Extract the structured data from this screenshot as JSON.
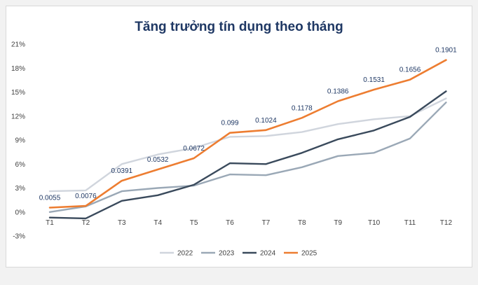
{
  "chart_data": {
    "type": "line",
    "title": "Tăng trưởng tín dụng theo tháng",
    "categories": [
      "T1",
      "T2",
      "T3",
      "T4",
      "T5",
      "T6",
      "T7",
      "T8",
      "T9",
      "T10",
      "T11",
      "T12"
    ],
    "y_ticks": [
      -3,
      0,
      3,
      6,
      9,
      12,
      15,
      18,
      21
    ],
    "y_tick_labels": [
      "-3%",
      "0%",
      "3%",
      "6%",
      "9%",
      "12%",
      "15%",
      "18%",
      "21%"
    ],
    "ylim": [
      -3,
      21
    ],
    "grid": false,
    "legend_position": "bottom",
    "series": [
      {
        "name": "2022",
        "color": "#d0d5dd",
        "values": [
          2.6,
          2.7,
          6.0,
          7.2,
          8.0,
          9.4,
          9.5,
          10.0,
          11.0,
          11.6,
          12.0,
          14.2
        ]
      },
      {
        "name": "2023",
        "color": "#9aa8b6",
        "values": [
          0.0,
          0.7,
          2.6,
          3.0,
          3.3,
          4.7,
          4.6,
          5.6,
          7.0,
          7.4,
          9.2,
          13.7
        ]
      },
      {
        "name": "2024",
        "color": "#3a4a5c",
        "values": [
          -0.7,
          -0.8,
          1.4,
          2.1,
          3.4,
          6.1,
          6.0,
          7.4,
          9.1,
          10.2,
          11.9,
          15.1
        ]
      },
      {
        "name": "2025",
        "color": "#ed7d31",
        "values": [
          0.55,
          0.76,
          3.91,
          5.32,
          6.72,
          9.9,
          10.24,
          11.78,
          13.86,
          15.31,
          16.56,
          19.01
        ]
      }
    ],
    "data_labels": {
      "series": "2025",
      "labels": [
        "0.0055",
        "0.0076",
        "0.0391",
        "0.0532",
        "0.0672",
        "0.099",
        "0.1024",
        "0.1178",
        "0.1386",
        "0.1531",
        "0.1656",
        "0.1901"
      ]
    }
  }
}
